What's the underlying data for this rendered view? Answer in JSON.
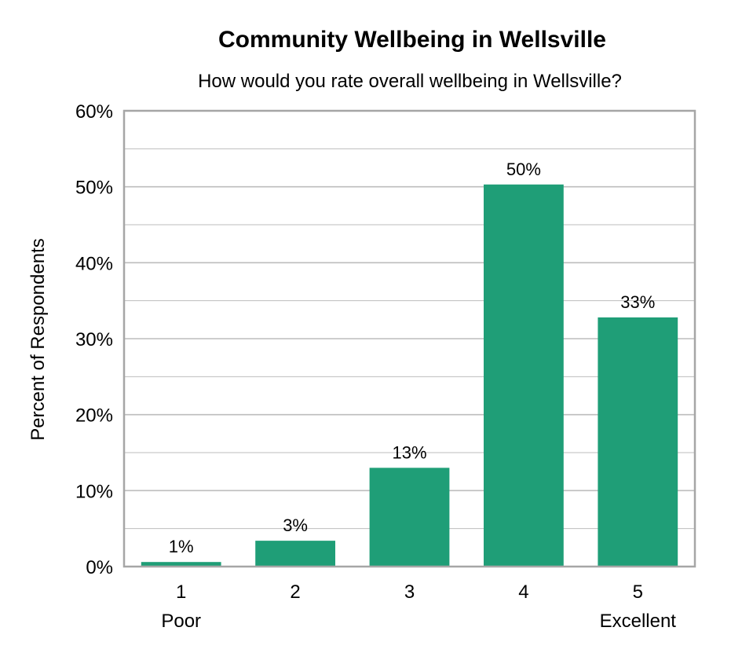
{
  "chart_data": {
    "type": "bar",
    "title": "Community Wellbeing in Wellsville",
    "subtitle": "How would you rate overall wellbeing in Wellsville?",
    "ylabel": "Percent of Respondents",
    "xlabel": "",
    "categories": [
      "1",
      "2",
      "3",
      "4",
      "5"
    ],
    "category_sublabels": [
      "Poor",
      "",
      "",
      "",
      "Excellent"
    ],
    "values": [
      0.6,
      3.4,
      13.0,
      50.3,
      32.8
    ],
    "data_labels": [
      "1%",
      "3%",
      "13%",
      "50%",
      "33%"
    ],
    "ylim": [
      0,
      60
    ],
    "yticks": [
      0,
      10,
      20,
      30,
      40,
      50,
      60
    ],
    "ytick_labels": [
      "0%",
      "10%",
      "20%",
      "30%",
      "40%",
      "50%",
      "60%"
    ],
    "grid": true,
    "legend": "none",
    "colors": {
      "bar": "#1f9e77",
      "grid": "#bdbdbd",
      "frame": "#a6a6a6"
    }
  }
}
